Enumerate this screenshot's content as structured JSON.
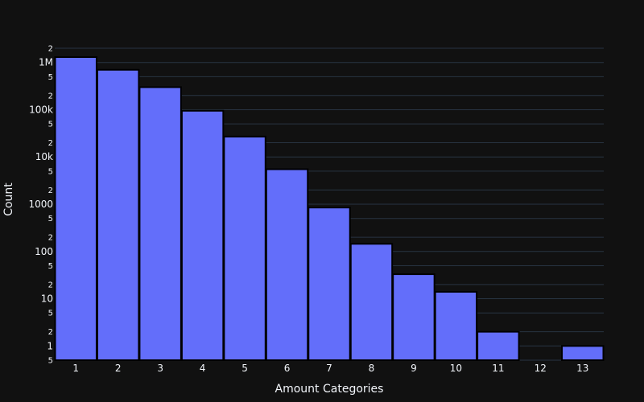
{
  "chart_data": {
    "type": "bar",
    "xlabel": "Amount Categories",
    "ylabel": "Count",
    "yscale": "log",
    "categories": [
      "1",
      "2",
      "3",
      "4",
      "5",
      "6",
      "7",
      "8",
      "9",
      "10",
      "11",
      "12",
      "13"
    ],
    "values": [
      1300000,
      700000,
      300000,
      95000,
      27000,
      5500,
      850,
      145,
      33,
      14,
      2,
      0,
      1
    ],
    "ylim": [
      0.5,
      2000000
    ],
    "y_major_ticks": [
      {
        "value": 1,
        "label": "1"
      },
      {
        "value": 10,
        "label": "10"
      },
      {
        "value": 100,
        "label": "100"
      },
      {
        "value": 1000,
        "label": "1000"
      },
      {
        "value": 10000,
        "label": "10k"
      },
      {
        "value": 100000,
        "label": "100k"
      },
      {
        "value": 1000000,
        "label": "1M"
      }
    ],
    "y_minor_ticks": [
      {
        "value": 0.5,
        "label": "5"
      },
      {
        "value": 2,
        "label": "2"
      },
      {
        "value": 5,
        "label": "5"
      },
      {
        "value": 20,
        "label": "2"
      },
      {
        "value": 50,
        "label": "5"
      },
      {
        "value": 200,
        "label": "2"
      },
      {
        "value": 500,
        "label": "5"
      },
      {
        "value": 2000,
        "label": "2"
      },
      {
        "value": 5000,
        "label": "5"
      },
      {
        "value": 20000,
        "label": "2"
      },
      {
        "value": 50000,
        "label": "5"
      },
      {
        "value": 200000,
        "label": "2"
      },
      {
        "value": 500000,
        "label": "5"
      },
      {
        "value": 2000000,
        "label": "2"
      }
    ],
    "grid": true,
    "legend": "none",
    "colors": {
      "background": "#111111",
      "bar": "#636efa",
      "bar_outline": "#000000",
      "grid": "#283442",
      "text": "#f2f5fa"
    }
  }
}
